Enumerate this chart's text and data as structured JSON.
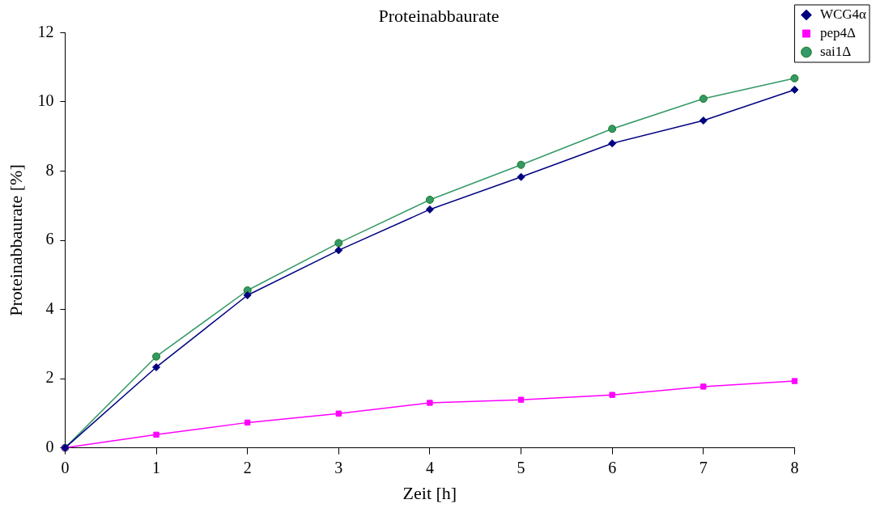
{
  "chart_data": {
    "type": "line",
    "title": "Proteinabbaurate",
    "xlabel": "Zeit [h]",
    "ylabel": "Proteinabbaurate [%]",
    "categories": [
      "0",
      "1",
      "2",
      "3",
      "4",
      "5",
      "6",
      "7",
      "8"
    ],
    "series": [
      {
        "name": "WCG4α",
        "color": "#000080",
        "marker": "diamond",
        "values": [
          0,
          2.33,
          4.41,
          5.71,
          6.89,
          7.83,
          8.8,
          9.46,
          10.35
        ]
      },
      {
        "name": "pep4Δ",
        "color": "#ff00ff",
        "marker": "square",
        "values": [
          0,
          0.38,
          0.73,
          0.99,
          1.3,
          1.39,
          1.53,
          1.77,
          1.93
        ]
      },
      {
        "name": "sai1Δ",
        "color": "#339966",
        "marker": "circle",
        "values": [
          0,
          2.64,
          4.55,
          5.92,
          7.17,
          8.18,
          9.22,
          10.09,
          10.68
        ]
      }
    ],
    "ylim": [
      0,
      12
    ],
    "yticks": [
      0,
      2,
      4,
      6,
      8,
      10,
      12
    ],
    "grid": false,
    "legend": "top right",
    "line_style": "solid"
  }
}
